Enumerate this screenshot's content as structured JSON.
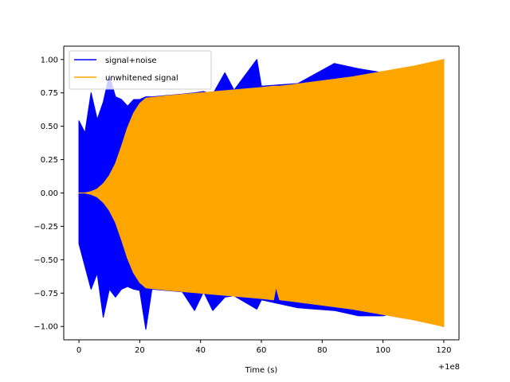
{
  "chart_data": {
    "type": "line",
    "title": "",
    "xlabel": "Time (s)",
    "ylabel": "",
    "x_offset_label": "+1e8",
    "xlim": [
      -5,
      125
    ],
    "ylim": [
      -1.1,
      1.1
    ],
    "x_ticks": [
      0,
      20,
      40,
      60,
      80,
      100,
      120
    ],
    "x_tick_labels": [
      "0",
      "20",
      "40",
      "60",
      "80",
      "100",
      "120"
    ],
    "y_ticks": [
      -1.0,
      -0.75,
      -0.5,
      -0.25,
      0.0,
      0.25,
      0.5,
      0.75,
      1.0
    ],
    "y_tick_labels": [
      "−1.00",
      "−0.75",
      "−0.50",
      "−0.25",
      "0.00",
      "0.25",
      "0.50",
      "0.75",
      "1.00"
    ],
    "grid": false,
    "legend_position": "upper-left",
    "series": [
      {
        "name": "signal+noise",
        "color": "#0000ff",
        "x": [
          0,
          2,
          4,
          6,
          8,
          10,
          12,
          14,
          16,
          18,
          20,
          22,
          24,
          34,
          38,
          41,
          44,
          48,
          51,
          58.5,
          60,
          72,
          84,
          92,
          100,
          104,
          120
        ],
        "upper": [
          0.54,
          0.45,
          0.75,
          0.55,
          0.68,
          0.88,
          0.72,
          0.7,
          0.65,
          0.7,
          0.7,
          0.72,
          0.72,
          0.74,
          0.75,
          0.76,
          0.74,
          0.9,
          0.77,
          1.0,
          0.8,
          0.82,
          0.97,
          0.93,
          0.9,
          0.88,
          1.0
        ],
        "lower": [
          -0.38,
          -0.55,
          -0.72,
          -0.6,
          -0.93,
          -0.72,
          -0.78,
          -0.72,
          -0.7,
          -0.72,
          -0.73,
          -1.02,
          -0.72,
          -0.74,
          -0.88,
          -0.74,
          -0.88,
          -0.78,
          -0.77,
          -0.87,
          -0.8,
          -0.86,
          -0.88,
          -0.92,
          -0.92,
          -0.9,
          -1.0
        ]
      },
      {
        "name": "unwhitened signal",
        "color": "#ffa500",
        "x": [
          0,
          2,
          4,
          6,
          8,
          10,
          12,
          14,
          16,
          18,
          20,
          22,
          30,
          40,
          50,
          60,
          64,
          64.8,
          66,
          70,
          80,
          90,
          100,
          110,
          120
        ],
        "upper": [
          0.0,
          0.0,
          0.01,
          0.03,
          0.07,
          0.13,
          0.22,
          0.35,
          0.49,
          0.6,
          0.67,
          0.71,
          0.73,
          0.75,
          0.77,
          0.79,
          0.8,
          0.8,
          0.8,
          0.81,
          0.84,
          0.87,
          0.91,
          0.95,
          1.0
        ],
        "lower": [
          0.0,
          0.0,
          -0.01,
          -0.03,
          -0.07,
          -0.13,
          -0.22,
          -0.35,
          -0.49,
          -0.6,
          -0.67,
          -0.71,
          -0.73,
          -0.75,
          -0.77,
          -0.79,
          -0.8,
          -0.7,
          -0.8,
          -0.81,
          -0.84,
          -0.87,
          -0.91,
          -0.95,
          -1.0
        ]
      }
    ]
  }
}
